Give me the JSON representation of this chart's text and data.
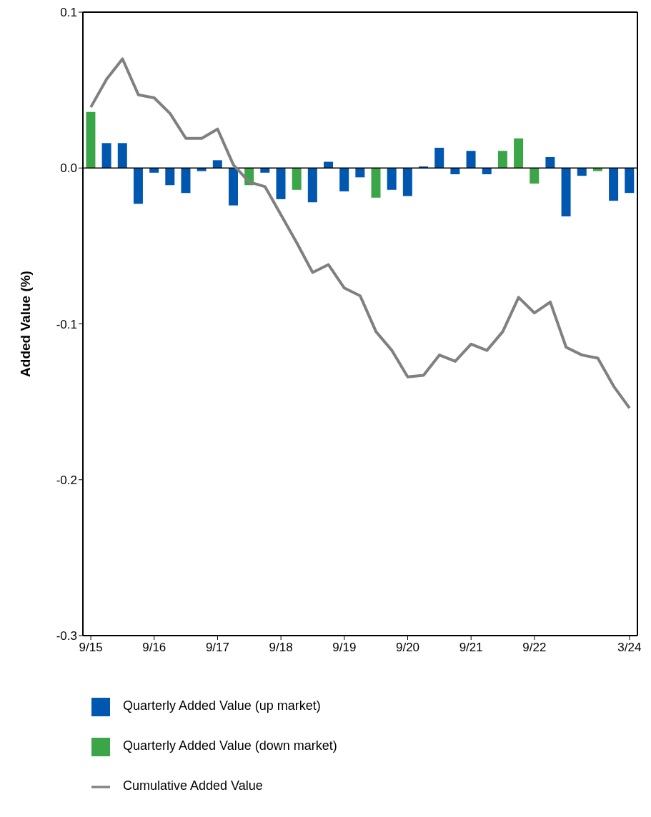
{
  "chart_data": {
    "type": "bar",
    "ylabel": "Added Value (%)",
    "categories": [
      "9/15",
      null,
      null,
      null,
      "9/16",
      null,
      null,
      null,
      "9/17",
      null,
      null,
      null,
      "9/18",
      null,
      null,
      null,
      "9/19",
      null,
      null,
      null,
      "9/20",
      null,
      null,
      null,
      "9/21",
      null,
      null,
      null,
      "9/22",
      null,
      null,
      null,
      null,
      null,
      "3/24"
    ],
    "series": [
      {
        "name": "Quarterly Added Value (up market)",
        "color": "#0057b0",
        "values": [
          null,
          0.016,
          0.016,
          -0.023,
          -0.003,
          -0.011,
          -0.016,
          -0.002,
          0.005,
          -0.024,
          null,
          -0.003,
          -0.02,
          null,
          -0.022,
          0.004,
          -0.015,
          -0.006,
          null,
          -0.014,
          -0.018,
          0.001,
          0.013,
          -0.004,
          0.011,
          -0.004,
          null,
          null,
          null,
          0.007,
          -0.031,
          -0.005,
          null,
          -0.021,
          -0.016
        ]
      },
      {
        "name": "Quarterly Added Value (down market)",
        "color": "#3aa648",
        "values": [
          0.036,
          null,
          null,
          null,
          null,
          null,
          null,
          null,
          null,
          null,
          -0.011,
          null,
          null,
          -0.014,
          null,
          null,
          null,
          null,
          -0.019,
          null,
          null,
          null,
          null,
          null,
          null,
          null,
          0.011,
          0.019,
          -0.01,
          null,
          null,
          null,
          -0.002,
          null,
          null
        ]
      },
      {
        "name": "Cumulative Added Value",
        "type": "line",
        "color": "#808080",
        "values": [
          0.039,
          0.057,
          0.07,
          0.047,
          0.045,
          0.035,
          0.019,
          0.019,
          0.025,
          0.002,
          -0.009,
          -0.012,
          -0.03,
          -0.048,
          -0.067,
          -0.062,
          -0.077,
          -0.082,
          -0.105,
          -0.117,
          -0.134,
          -0.133,
          -0.12,
          -0.124,
          -0.113,
          -0.117,
          -0.105,
          -0.083,
          -0.093,
          -0.086,
          -0.115,
          -0.12,
          -0.122,
          -0.14,
          -0.154
        ]
      }
    ],
    "ylim": [
      -0.3,
      0.1
    ],
    "yticks": [
      0.1,
      {
        "value": 0,
        "label": "0.0"
      },
      -0.1,
      -0.2,
      -0.3
    ],
    "ref_lines": [
      {
        "axis": "y",
        "value": 0,
        "color": "#000000"
      }
    ],
    "legend": "bottom",
    "marker": "none",
    "line_style": "solid"
  }
}
